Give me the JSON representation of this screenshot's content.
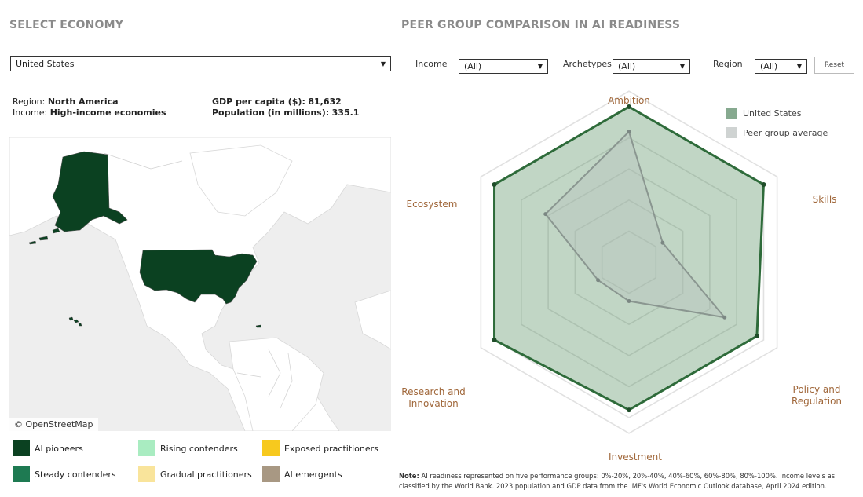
{
  "left": {
    "title": "SELECT ECONOMY",
    "economy_select": {
      "value": "United States"
    },
    "info": {
      "region_label": "Region:",
      "region_value": "North America",
      "income_label": "Income:",
      "income_value": "High-income economies",
      "gdp_label": "GDP per capita ($):",
      "gdp_value": "81,632",
      "population_label": "Population (in millions):",
      "population_value": "335.1"
    },
    "map": {
      "attribution": "© OpenStreetMap",
      "highlight_color": "#0b4121",
      "land_color": "#ffffff",
      "water_color": "#eeeeee"
    },
    "legend": [
      {
        "label": "AI pioneers",
        "color": "#0b4121"
      },
      {
        "label": "Rising contenders",
        "color": "#a9ecc1"
      },
      {
        "label": "Exposed practitioners",
        "color": "#f7c91e"
      },
      {
        "label": "Steady contenders",
        "color": "#1e7a52"
      },
      {
        "label": "Gradual practitioners",
        "color": "#f9e49b"
      },
      {
        "label": "AI emergents",
        "color": "#a89883"
      }
    ]
  },
  "right": {
    "title": "PEER GROUP COMPARISON IN AI READINESS",
    "filters": {
      "income_label": "Income",
      "income_value": "(All)",
      "archetypes_label": "Archetypes",
      "archetypes_value": "(All)",
      "region_label": "Region",
      "region_value": "(All)",
      "reset_label": "Reset"
    },
    "note_label": "Note:",
    "note_text": " AI readiness represented on five performance groups: 0%-20%, 20%-40%, 40%-60%, 60%-80%, 80%-100%. Income levels as classified by the World Bank. 2023 population and GDP data from the IMF's World Economic Outlook database, April 2024 edition."
  },
  "chart_data": {
    "type": "radar",
    "axes": [
      "Ambition",
      "Skills",
      "Policy and Regulation",
      "Investment",
      "Research and Innovation",
      "Ecosystem"
    ],
    "rings": [
      0.2,
      0.4,
      0.6,
      0.8,
      1.0
    ],
    "series": [
      {
        "name": "United States",
        "values": [
          1.0,
          1.0,
          0.95,
          0.95,
          1.0,
          1.0
        ],
        "color": "#2e6b3a",
        "fill": "#4e8a5a"
      },
      {
        "name": "Peer group average",
        "values": [
          0.84,
          0.25,
          0.71,
          0.25,
          0.23,
          0.62
        ],
        "color": "#8a9690",
        "fill": "#b8c0bc"
      }
    ],
    "grid": true,
    "legend_position": "top-right"
  }
}
